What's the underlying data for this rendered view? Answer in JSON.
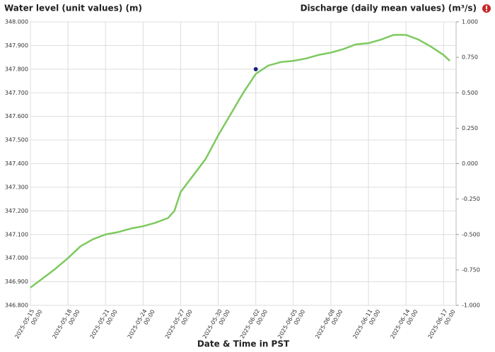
{
  "chart_data": {
    "type": "line",
    "title": "Water level (unit values) (m)",
    "title_right": "Discharge (daily mean values) (m³/s)",
    "x_label": "Date & Time in PST",
    "x": [
      "2025-05-15 00:00",
      "2025-05-16 00:00",
      "2025-05-17 00:00",
      "2025-05-18 00:00",
      "2025-05-19 00:00",
      "2025-05-20 00:00",
      "2025-05-21 00:00",
      "2025-05-22 00:00",
      "2025-05-23 00:00",
      "2025-05-24 00:00",
      "2025-05-25 00:00",
      "2025-05-26 00:00",
      "2025-05-26 12:00",
      "2025-05-27 00:00",
      "2025-05-28 00:00",
      "2025-05-29 00:00",
      "2025-05-30 00:00",
      "2025-05-31 00:00",
      "2025-06-01 00:00",
      "2025-06-02 00:00",
      "2025-06-03 00:00",
      "2025-06-04 00:00",
      "2025-06-05 00:00",
      "2025-06-06 00:00",
      "2025-06-07 00:00",
      "2025-06-08 00:00",
      "2025-06-09 00:00",
      "2025-06-10 00:00",
      "2025-06-11 00:00",
      "2025-06-12 00:00",
      "2025-06-13 00:00",
      "2025-06-14 00:00",
      "2025-06-15 00:00",
      "2025-06-16 00:00",
      "2025-06-17 00:00",
      "2025-06-17 12:00"
    ],
    "series": [
      {
        "name": "Water level",
        "color": "#7dc95e",
        "values": [
          346.875,
          346.915,
          346.955,
          347.0,
          347.05,
          347.08,
          347.1,
          347.11,
          347.125,
          347.135,
          347.15,
          347.17,
          347.2,
          347.28,
          347.35,
          347.42,
          347.52,
          347.61,
          347.7,
          347.78,
          347.815,
          347.83,
          347.835,
          347.845,
          347.86,
          347.87,
          347.885,
          347.905,
          347.91,
          347.925,
          347.945,
          347.945,
          347.925,
          347.895,
          347.86,
          347.835
        ]
      }
    ],
    "marker": {
      "x": "2025-06-02 00:00",
      "value": 347.8,
      "color": "#1a237e"
    },
    "xlim": [
      "2025-05-15 00:00",
      "2025-06-18 00:00"
    ],
    "xticks": [
      "2025-05-15 00:00",
      "2025-05-18 00:00",
      "2025-05-21 00:00",
      "2025-05-24 00:00",
      "2025-05-27 00:00",
      "2025-05-30 00:00",
      "2025-06-02 00:00",
      "2025-06-05 00:00",
      "2025-06-08 00:00",
      "2025-06-11 00:00",
      "2025-06-14 00:00",
      "2025-06-17 00:00"
    ],
    "ylim": [
      346.8,
      348.0
    ],
    "yticks": [
      {
        "value": 346.8,
        "label": "346.800"
      },
      {
        "value": 346.9,
        "label": "346.900"
      },
      {
        "value": 347.0,
        "label": "347.000"
      },
      {
        "value": 347.1,
        "label": "347.100"
      },
      {
        "value": 347.2,
        "label": "347.200"
      },
      {
        "value": 347.3,
        "label": "347.300"
      },
      {
        "value": 347.4,
        "label": "347.400"
      },
      {
        "value": 347.5,
        "label": "347.500"
      },
      {
        "value": 347.6,
        "label": "347.600"
      },
      {
        "value": 347.7,
        "label": "347.700"
      },
      {
        "value": 347.8,
        "label": "347.800"
      },
      {
        "value": 347.9,
        "label": "347.900"
      },
      {
        "value": 348.0,
        "label": "348.000"
      }
    ],
    "y2lim": [
      -1.0,
      1.0
    ],
    "y2ticks": [
      {
        "value": -1.0,
        "label": "-1.000"
      },
      {
        "value": -0.75,
        "label": "-0.750"
      },
      {
        "value": -0.5,
        "label": "-0.500"
      },
      {
        "value": -0.25,
        "label": "-0.250"
      },
      {
        "value": 0,
        "label": "0.000"
      },
      {
        "value": 0.25,
        "label": "0.250"
      },
      {
        "value": 0.5,
        "label": "0.500"
      },
      {
        "value": 0.75,
        "label": "0.750"
      },
      {
        "value": 1.0,
        "label": "1.000"
      }
    ],
    "grid": true
  }
}
